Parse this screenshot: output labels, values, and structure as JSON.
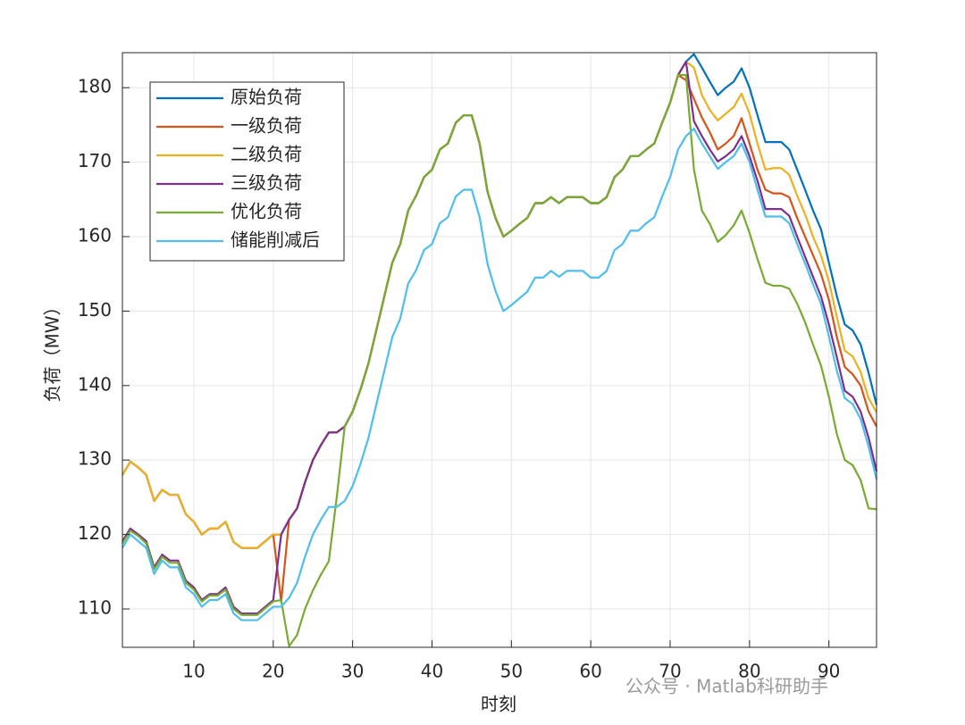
{
  "chart_data": {
    "type": "line",
    "xlabel": "时刻",
    "ylabel": "负荷（MW）",
    "watermark": "公众号 · Matlab科研助手",
    "x": [
      1,
      2,
      3,
      4,
      5,
      6,
      7,
      8,
      9,
      10,
      11,
      12,
      13,
      14,
      15,
      16,
      17,
      18,
      19,
      20,
      21,
      22,
      23,
      24,
      25,
      26,
      27,
      28,
      29,
      30,
      31,
      32,
      33,
      34,
      35,
      36,
      37,
      38,
      39,
      40,
      41,
      42,
      43,
      44,
      45,
      46,
      47,
      48,
      49,
      50,
      51,
      52,
      53,
      54,
      55,
      56,
      57,
      58,
      59,
      60,
      61,
      62,
      63,
      64,
      65,
      66,
      67,
      68,
      69,
      70,
      71,
      72,
      73,
      74,
      75,
      76,
      77,
      78,
      79,
      80,
      81,
      82,
      83,
      84,
      85,
      86,
      87,
      88,
      89,
      90,
      91,
      92,
      93,
      94,
      95,
      96
    ],
    "xlim": [
      1,
      96
    ],
    "xticks": [
      10,
      20,
      30,
      40,
      50,
      60,
      70,
      80,
      90
    ],
    "ylim": [
      104.85,
      184.7
    ],
    "yticks": [
      110,
      120,
      130,
      140,
      150,
      160,
      170,
      180
    ],
    "grid": true,
    "legend": "northwest",
    "series": [
      {
        "name": "原始负荷",
        "color": "#0072BD",
        "values": [
          128,
          129.8,
          129,
          128,
          124.5,
          126,
          125.3,
          125.3,
          122.7,
          121.7,
          120,
          120.8,
          120.8,
          121.7,
          119,
          118.2,
          118.2,
          118.2,
          119.1,
          120,
          120,
          122,
          123.5,
          127,
          130,
          132,
          133.7,
          133.7,
          134.5,
          136.5,
          139.5,
          143,
          147.5,
          152,
          156.5,
          159,
          163.5,
          165.5,
          168,
          169,
          171.7,
          172.5,
          175.3,
          176.3,
          176.3,
          172.5,
          166,
          162.5,
          160,
          160.8,
          161.7,
          162.5,
          164.5,
          164.5,
          165.3,
          164.5,
          165.3,
          165.3,
          165.3,
          164.5,
          164.5,
          165.3,
          168,
          169,
          170.8,
          170.8,
          171.7,
          172.5,
          175.3,
          178,
          181.7,
          183.5,
          184.5,
          182.7,
          180.8,
          179,
          180,
          180.8,
          182.6,
          180,
          176.3,
          172.7,
          172.7,
          172.7,
          171.7,
          169,
          166.3,
          163.5,
          161,
          156.5,
          152,
          148.2,
          147.4,
          145.5,
          141.7,
          137.4
        ]
      },
      {
        "name": "一级负荷",
        "color": "#D95319",
        "values": [
          128,
          129.8,
          129,
          128,
          124.5,
          126,
          125.3,
          125.3,
          122.7,
          121.7,
          120,
          120.8,
          120.8,
          121.7,
          119,
          118.2,
          118.2,
          118.2,
          119.1,
          120,
          111,
          122,
          123.5,
          127,
          130,
          132,
          133.7,
          133.7,
          134.5,
          136.5,
          139.5,
          143,
          147.5,
          152,
          156.5,
          159,
          163.5,
          165.5,
          168,
          169,
          171.7,
          172.5,
          175.3,
          176.3,
          176.3,
          172.5,
          166,
          162.5,
          160,
          160.8,
          161.7,
          162.5,
          164.5,
          164.5,
          165.3,
          164.5,
          165.3,
          165.3,
          165.3,
          164.5,
          164.5,
          165.3,
          168,
          169,
          170.8,
          170.8,
          171.7,
          172.5,
          175.3,
          178,
          181.7,
          181,
          178.5,
          176,
          174,
          171.7,
          172.5,
          173.5,
          175.9,
          172.5,
          169,
          166.3,
          165.8,
          165.8,
          165.3,
          162.5,
          160,
          157.5,
          155,
          151.5,
          146.5,
          142.5,
          141.5,
          140,
          136.5,
          134.5
        ]
      },
      {
        "name": "二级负荷",
        "color": "#EDB120",
        "values": [
          128,
          129.8,
          129,
          128,
          124.5,
          126,
          125.3,
          125.3,
          122.7,
          121.7,
          120,
          120.8,
          120.8,
          121.7,
          119,
          118.2,
          118.2,
          118.2,
          119.1,
          120,
          120,
          122,
          123.5,
          127,
          130,
          132,
          133.7,
          133.7,
          134.5,
          136.5,
          139.5,
          143,
          147.5,
          152,
          156.5,
          159,
          163.5,
          165.5,
          168,
          169,
          171.7,
          172.5,
          175.3,
          176.3,
          176.3,
          172.5,
          166,
          162.5,
          160,
          160.8,
          161.7,
          162.5,
          164.5,
          164.5,
          165.3,
          164.5,
          165.3,
          165.3,
          165.3,
          164.5,
          164.5,
          165.3,
          168,
          169,
          170.8,
          170.8,
          171.7,
          172.5,
          175.3,
          178,
          181.7,
          183.5,
          182.7,
          179,
          177,
          175.6,
          176.5,
          177.4,
          179.2,
          176.5,
          172.5,
          169,
          169.2,
          169.2,
          168.3,
          165.5,
          163,
          160,
          157.5,
          154,
          149.2,
          144.7,
          143.9,
          141.8,
          138.3,
          136.4
        ]
      },
      {
        "name": "三级负荷",
        "color": "#7E2F8E",
        "values": [
          119.1,
          120.8,
          120,
          119.1,
          115.6,
          117.3,
          116.5,
          116.5,
          113.8,
          112.9,
          111.2,
          112,
          112,
          112.9,
          110.3,
          109.4,
          109.4,
          109.4,
          110.3,
          111.2,
          120,
          122,
          123.5,
          127,
          130,
          132,
          133.7,
          133.7,
          134.5,
          136.5,
          139.5,
          143,
          147.5,
          152,
          156.5,
          159,
          163.5,
          165.5,
          168,
          169,
          171.7,
          172.5,
          175.3,
          176.3,
          176.3,
          172.5,
          166,
          162.5,
          160,
          160.8,
          161.7,
          162.5,
          164.5,
          164.5,
          165.3,
          164.5,
          165.3,
          165.3,
          165.3,
          164.5,
          164.5,
          165.3,
          168,
          169,
          170.8,
          170.8,
          171.7,
          172.5,
          175.3,
          178,
          181.7,
          183.5,
          175.5,
          173.5,
          171.7,
          170.1,
          170.8,
          171.7,
          173.5,
          170.8,
          167.5,
          163.7,
          163.7,
          163.7,
          162.8,
          160,
          157.3,
          154.6,
          152,
          148.2,
          143.8,
          139.3,
          138.5,
          136.5,
          133,
          128.5
        ]
      },
      {
        "name": "优化负荷",
        "color": "#77AC30",
        "values": [
          118.8,
          120.5,
          119.8,
          118.8,
          115.3,
          117,
          116.2,
          116.2,
          113.5,
          112.6,
          111,
          111.8,
          111.8,
          112.6,
          110,
          109.2,
          109.2,
          109.2,
          110.1,
          111,
          111.2,
          105,
          106.5,
          110,
          112.5,
          114.6,
          116.4,
          125,
          134.5,
          136.5,
          139.5,
          143,
          147.5,
          152,
          156.5,
          159,
          163.5,
          165.5,
          168,
          169,
          171.7,
          172.5,
          175.3,
          176.3,
          176.3,
          172.5,
          166,
          162.5,
          160,
          160.8,
          161.7,
          162.5,
          164.5,
          164.5,
          165.3,
          164.5,
          165.3,
          165.3,
          165.3,
          164.5,
          164.5,
          165.3,
          168,
          169,
          170.8,
          170.8,
          171.7,
          172.5,
          175.3,
          178,
          181.7,
          181.7,
          169,
          163.5,
          161.7,
          159.3,
          160.2,
          161.5,
          163.5,
          160.5,
          157,
          153.8,
          153.4,
          153.4,
          153,
          151,
          148.5,
          145.5,
          142.7,
          138.5,
          133.5,
          130,
          129.3,
          127.3,
          123.5,
          123.4
        ]
      },
      {
        "name": "储能削减后",
        "color": "#4DBEEE",
        "values": [
          118.2,
          120,
          119.1,
          118.2,
          114.7,
          116.5,
          115.6,
          115.6,
          112.9,
          112,
          110.3,
          111.2,
          111.2,
          112,
          109.4,
          108.5,
          108.5,
          108.5,
          109.4,
          110.3,
          110.3,
          111.5,
          113.5,
          117,
          120,
          122,
          123.7,
          123.7,
          124.5,
          126.5,
          129.5,
          133,
          137.5,
          142,
          146.5,
          149,
          153.7,
          155.5,
          158.2,
          159,
          161.8,
          162.6,
          165.4,
          166.3,
          166.3,
          162.6,
          156.3,
          152.7,
          150,
          150.8,
          151.7,
          152.6,
          154.5,
          154.5,
          155.4,
          154.6,
          155.4,
          155.4,
          155.4,
          154.5,
          154.5,
          155.4,
          158.2,
          159,
          160.8,
          160.8,
          161.8,
          162.6,
          165.4,
          168,
          171.7,
          173.5,
          174.5,
          172.5,
          170.8,
          169.1,
          170,
          170.8,
          172.5,
          170,
          166.3,
          162.7,
          162.7,
          162.7,
          161.8,
          159,
          156.4,
          153.6,
          151,
          146.6,
          142,
          138.3,
          137.5,
          135.5,
          131.8,
          127.4
        ]
      }
    ]
  }
}
